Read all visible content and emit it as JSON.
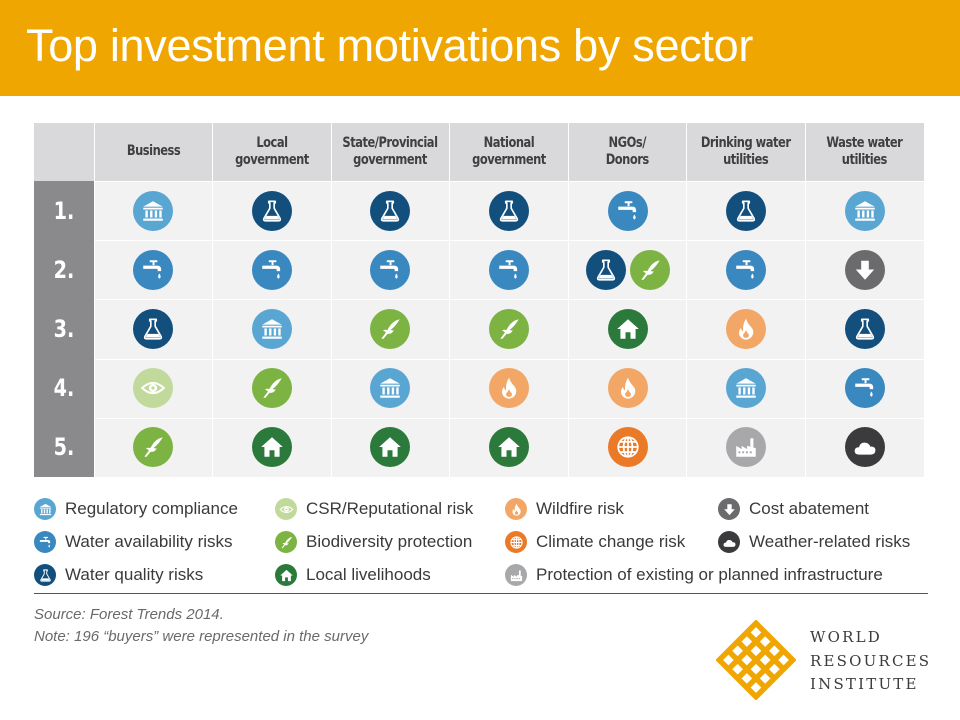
{
  "title": "Top investment motivations by sector",
  "chart_data": {
    "type": "table",
    "columns": [
      [
        "Business"
      ],
      [
        "Local",
        "government"
      ],
      [
        "State/Provincial",
        "government"
      ],
      [
        "National",
        "government"
      ],
      [
        "NGOs/",
        "Donors"
      ],
      [
        "Drinking water",
        "utilities"
      ],
      [
        "Waste water",
        "utilities"
      ]
    ],
    "rows": [
      "1.",
      "2.",
      "3.",
      "4.",
      "5."
    ],
    "cells": [
      [
        [
          "reg"
        ],
        [
          "qual"
        ],
        [
          "qual"
        ],
        [
          "qual"
        ],
        [
          "avail"
        ],
        [
          "qual"
        ],
        [
          "reg"
        ]
      ],
      [
        [
          "avail"
        ],
        [
          "avail"
        ],
        [
          "avail"
        ],
        [
          "avail"
        ],
        [
          "qual",
          "bio"
        ],
        [
          "avail"
        ],
        [
          "cost"
        ]
      ],
      [
        [
          "qual"
        ],
        [
          "reg"
        ],
        [
          "bio"
        ],
        [
          "bio"
        ],
        [
          "live"
        ],
        [
          "fire"
        ],
        [
          "qual"
        ]
      ],
      [
        [
          "csr"
        ],
        [
          "bio"
        ],
        [
          "reg"
        ],
        [
          "fire"
        ],
        [
          "fire"
        ],
        [
          "reg"
        ],
        [
          "avail"
        ]
      ],
      [
        [
          "bio"
        ],
        [
          "live"
        ],
        [
          "live"
        ],
        [
          "live"
        ],
        [
          "climate"
        ],
        [
          "infra"
        ],
        [
          "weather"
        ]
      ]
    ]
  },
  "legend": [
    {
      "key": "reg",
      "label": "Regulatory compliance",
      "icon": "institution-icon",
      "color": "#5aa6d3"
    },
    {
      "key": "csr",
      "label": "CSR/Reputational risk",
      "icon": "eye-icon",
      "color": "#c2d99c"
    },
    {
      "key": "fire",
      "label": "Wildfire risk",
      "icon": "flame-icon",
      "color": "#f2a766"
    },
    {
      "key": "cost",
      "label": "Cost abatement",
      "icon": "down-arrow-icon",
      "color": "#6b6b6d"
    },
    {
      "key": "avail",
      "label": "Water availability risks",
      "icon": "faucet-icon",
      "color": "#3a88c0"
    },
    {
      "key": "bio",
      "label": "Biodiversity protection",
      "icon": "bird-icon",
      "color": "#7cb342"
    },
    {
      "key": "climate",
      "label": "Climate change risk",
      "icon": "globe-icon",
      "color": "#ea7a27"
    },
    {
      "key": "weather",
      "label": "Weather-related risks",
      "icon": "cloud-icon",
      "color": "#3b3b3d"
    },
    {
      "key": "qual",
      "label": "Water quality risks",
      "icon": "flask-icon",
      "color": "#134f7d"
    },
    {
      "key": "live",
      "label": "Local livelihoods",
      "icon": "house-icon",
      "color": "#2c7a3b"
    },
    {
      "key": "infra",
      "label": "Protection of existing or planned infrastructure",
      "icon": "factory-icon",
      "color": "#a8a8aa"
    }
  ],
  "source": "Source: Forest Trends 2014.",
  "note": "Note: 196  “buyers” were represented in the survey",
  "logo": {
    "line1": "WORLD",
    "line2": "RESOURCES",
    "line3": "INSTITUTE"
  }
}
